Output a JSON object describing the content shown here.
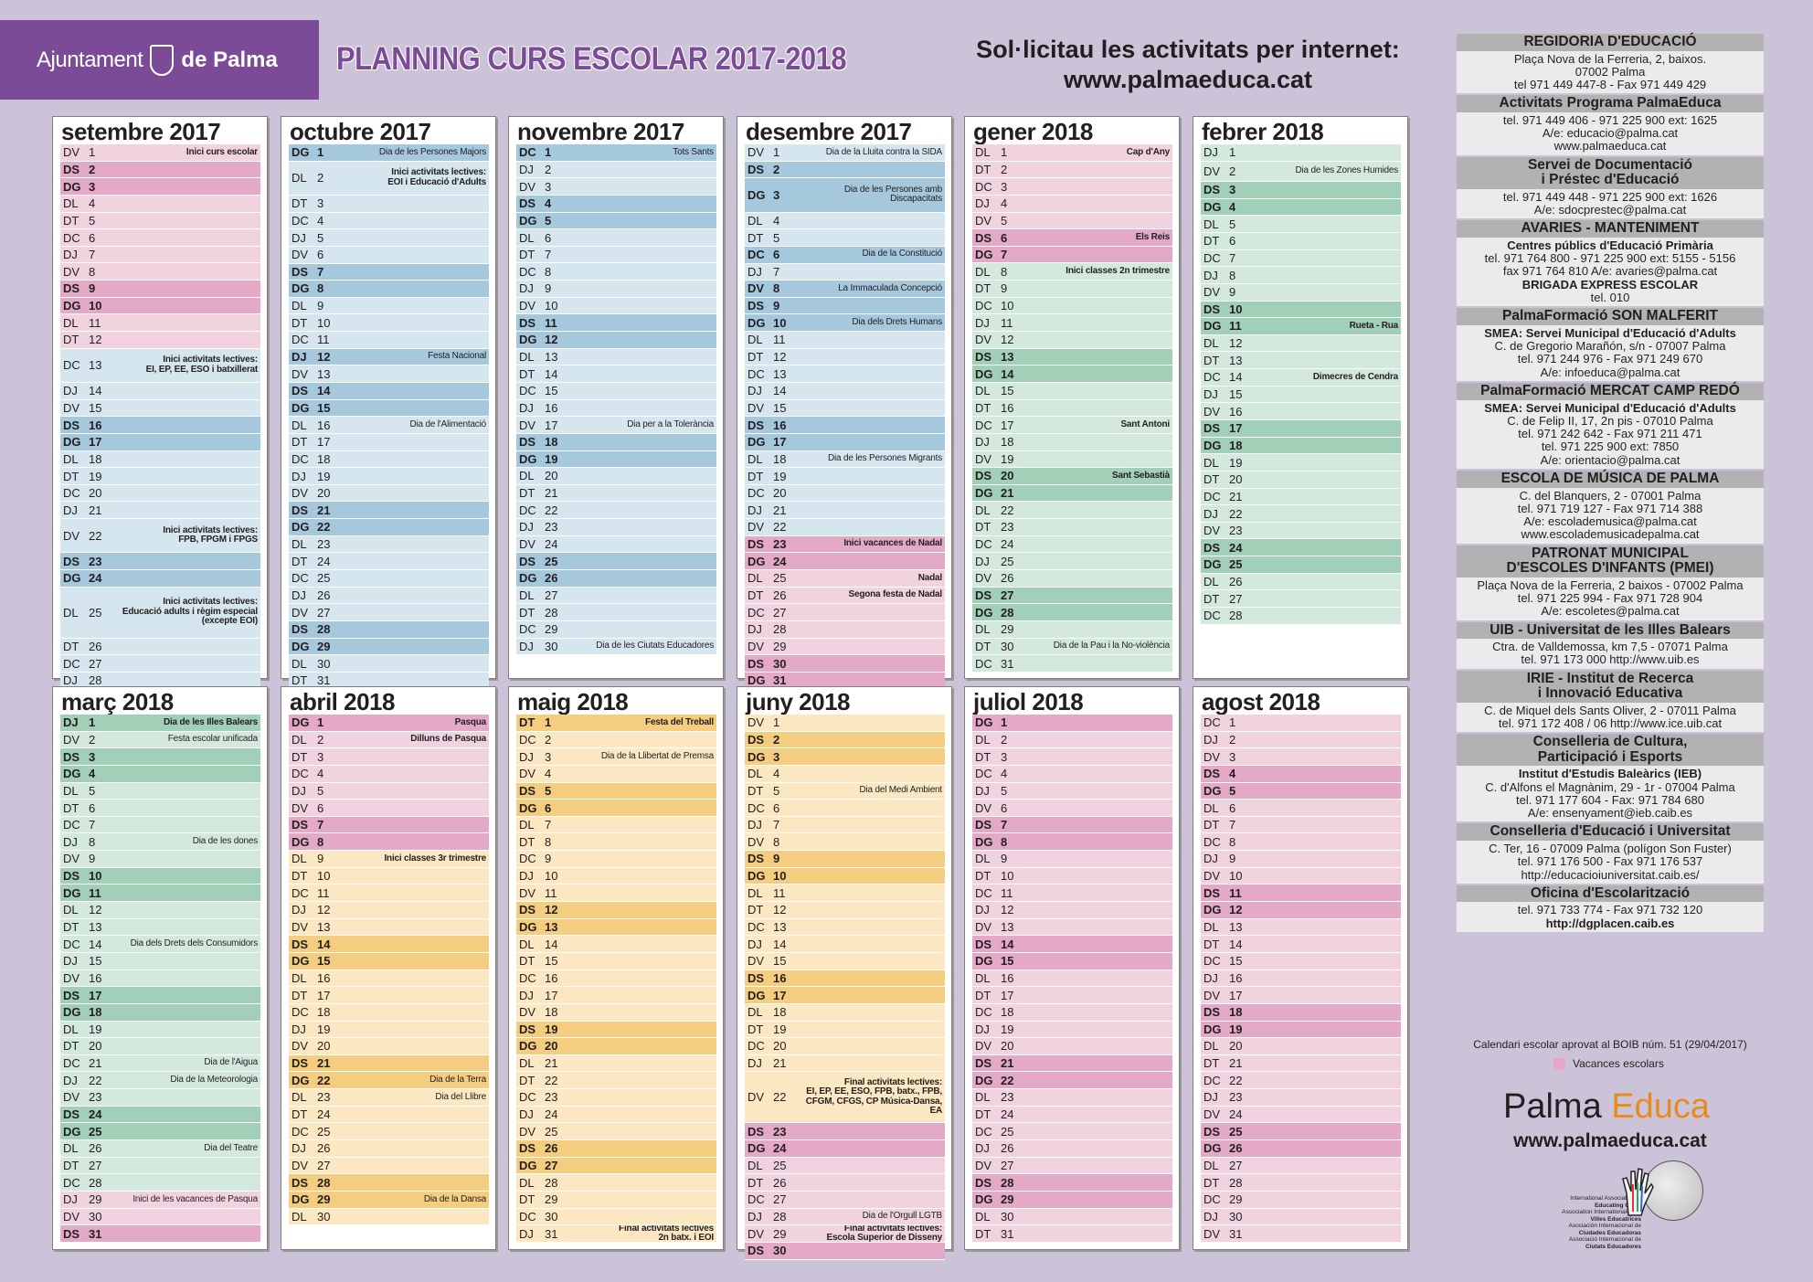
{
  "header": {
    "logo_left": "Ajuntament",
    "logo_right": "de Palma",
    "title": "PLANNING CURS ESCOLAR 2017-2018",
    "internet_line1": "Sol·licitau les activitats per internet:",
    "internet_line2": "www.palmaeduca.cat"
  },
  "colors": {
    "purple": "#7b4b97",
    "pink_light": "#f0d3df",
    "pink_dark": "#e4a9c6",
    "blue_light": "#d6e6ef",
    "blue_dark": "#a6c8dd",
    "green_light": "#d4e9de",
    "green_dark": "#a2cfb7",
    "yellow_light": "#fbe8c2",
    "yellow_dark": "#f4cd80"
  },
  "months": [
    {
      "name": "setembre 2017",
      "theme": "blue",
      "start": "DV",
      "days": 30,
      "vac": [
        1,
        2,
        3,
        4,
        5,
        6,
        7,
        8,
        9,
        10,
        11,
        12
      ],
      "events": {
        "1": "Inici curs escolar",
        "13": "Inici activitats lectives:\nEI, EP, EE, ESO i batxillerat",
        "22": "Inici activitats lectives:\nFPB, FPGM i FPGS",
        "25": "Inici activitats lectives:\nEducació adults i règim especial\n(excepte EOI)"
      },
      "bold": [
        "1",
        "13",
        "22",
        "25"
      ],
      "tall": {
        "13": 2,
        "22": 2,
        "25": 3
      }
    },
    {
      "name": "octubre 2017",
      "theme": "blue",
      "start": "DG",
      "days": 31,
      "vac": [],
      "events": {
        "1": "Dia de les Persones Majors",
        "2": "Inici activitats lectives:\nEOI i Educació d'Adults",
        "12": "Festa Nacional",
        "16": "Dia de l'Alimentació"
      },
      "bold": [
        "2"
      ],
      "tall": {
        "2": 2
      }
    },
    {
      "name": "novembre 2017",
      "theme": "blue",
      "start": "DC",
      "days": 30,
      "vac": [],
      "events": {
        "1": "Tots Sants",
        "17": "Dia per a la Tolerància",
        "30": "Dia de les Ciutats Educadores"
      },
      "bold": [],
      "tall": {}
    },
    {
      "name": "desembre 2017",
      "theme": "blue",
      "start": "DV",
      "days": 31,
      "vac": [
        23,
        24,
        25,
        26,
        27,
        28,
        29,
        30,
        31
      ],
      "events": {
        "1": "Dia de la Lluita contra la SIDA",
        "3": "Dia de les Persones amb\nDiscapacitats",
        "6": "Dia de la Constitució",
        "8": "La Immaculada Concepció",
        "10": "Dia dels Drets Humans",
        "18": "Dia de les Persones Migrants",
        "23": "Inici vacances de Nadal",
        "25": "Nadal",
        "26": "Segona festa de Nadal"
      },
      "bold": [
        "23",
        "25",
        "26"
      ],
      "tall": {
        "3": 2
      }
    },
    {
      "name": "gener 2018",
      "theme": "green",
      "start": "DL",
      "days": 31,
      "vac": [
        1,
        2,
        3,
        4,
        5,
        6,
        7
      ],
      "events": {
        "1": "Cap d'Any",
        "6": "Els Reis",
        "8": "Inici classes 2n trimestre",
        "17": "Sant Antoni",
        "20": "Sant Sebastià",
        "30": "Dia de la Pau i la No-violència"
      },
      "bold": [
        "1",
        "6",
        "8",
        "17",
        "20"
      ],
      "tall": {}
    },
    {
      "name": "febrer 2018",
      "theme": "green",
      "start": "DJ",
      "days": 28,
      "vac": [],
      "events": {
        "2": "Dia de les Zones Humides",
        "11": "Rueta - Rua",
        "14": "Dimecres de Cendra"
      },
      "bold": [
        "11",
        "14"
      ],
      "tall": {
        "2": 1.2
      }
    },
    {
      "name": "març 2018",
      "theme": "green",
      "start": "DJ",
      "days": 31,
      "vac": [
        29,
        30,
        31
      ],
      "events": {
        "1": "Dia de les Illes Balears",
        "2": "Festa escolar unificada",
        "8": "Dia de les dones",
        "14": "Dia dels Drets dels Consumidors",
        "21": "Dia de l'Aigua",
        "22": "Dia de la Meteorologia",
        "26": "Dia del Teatre",
        "29": "Inici de les vacances de Pasqua"
      },
      "bold": [
        "1"
      ],
      "tall": {}
    },
    {
      "name": "abril 2018",
      "theme": "yellow",
      "start": "DG",
      "days": 30,
      "vac": [
        1,
        2,
        3,
        4,
        5,
        6,
        7,
        8
      ],
      "events": {
        "1": "Pasqua",
        "2": "Dilluns de Pasqua",
        "9": "Inici classes 3r trimestre",
        "22": "Dia de la Terra",
        "23": "Dia del Llibre",
        "29": "Dia de la Dansa"
      },
      "bold": [
        "1",
        "2",
        "9"
      ],
      "tall": {}
    },
    {
      "name": "maig 2018",
      "theme": "yellow",
      "start": "DT",
      "days": 31,
      "vac": [],
      "events": {
        "1": "Festa del Treball",
        "3": "Dia de la Llibertat de Premsa",
        "31": "Final activitats lectives\n2n batx. i EOI"
      },
      "bold": [
        "1",
        "31"
      ],
      "tall": {}
    },
    {
      "name": "juny 2018",
      "theme": "yellow",
      "start": "DV",
      "days": 30,
      "vac": [
        23,
        24,
        25,
        26,
        27,
        28,
        29,
        30
      ],
      "events": {
        "5": "Dia del Medi Ambient",
        "22": "Final activitats lectives:\nEI, EP, EE, ESO, FPB, batx., FPB,\nCFGM, CFGS, CP Música-Dansa, EA",
        "28": "Dia de l'Orgull LGTB",
        "29": "Final activitats lectives:\nEscola Superior de Disseny"
      },
      "bold": [
        "22",
        "29"
      ],
      "tall": {
        "22": 3
      }
    },
    {
      "name": "juliol 2018",
      "theme": "pink",
      "start": "DG",
      "days": 31,
      "vac": "all",
      "events": {},
      "bold": [],
      "tall": {}
    },
    {
      "name": "agost 2018",
      "theme": "pink",
      "start": "DC",
      "days": 31,
      "vac": "all",
      "events": {},
      "bold": [],
      "tall": {}
    }
  ],
  "sidebar": [
    {
      "head": "REGIDORIA D'EDUCACIÓ",
      "lines": [
        "Plaça Nova de la Ferreria, 2, baixos.",
        "07002 Palma",
        "tel 971 449 447-8 - Fax 971 449 429"
      ]
    },
    {
      "head": "Activitats Programa PalmaEduca",
      "lines": [
        "tel. 971 449 406 - 971 225 900 ext: 1625",
        "A/e: educacio@palma.cat",
        "www.palmaeduca.cat"
      ]
    },
    {
      "head": "Servei de Documentació\ni Préstec d'Educació",
      "lines": [
        "tel. 971 449 448  - 971 225 900 ext: 1626",
        "A/e: sdocprestec@palma.cat"
      ]
    },
    {
      "head": "AVARIES - MANTENIMENT",
      "lines": [
        "**Centres públics d'Educació Primària",
        "tel. 971 764 800 - 971 225 900  ext: 5155 - 5156",
        "fax 971 764 810   A/e: avaries@palma.cat",
        "**BRIGADA EXPRESS ESCOLAR",
        "tel. 010"
      ]
    },
    {
      "head": "PalmaFormació SON MALFERIT",
      "lines": [
        "**SMEA: Servei Municipal d'Educació d'Adults",
        "C. de Gregorio Marañón, s/n  - 07007 Palma",
        "tel. 971 244 976 - Fax 971 249 670",
        "A/e: infoeduca@palma.cat"
      ]
    },
    {
      "head": "PalmaFormació MERCAT CAMP REDÓ",
      "lines": [
        "**SMEA: Servei Municipal d'Educació d'Adults",
        "C. de Felip II, 17, 2n pis - 07010 Palma",
        "tel. 971 242 642  - Fax 971 211 471",
        "tel. 971 225 900   ext: 7850",
        "A/e: orientacio@palma.cat"
      ]
    },
    {
      "head": "ESCOLA DE MÚSICA DE PALMA",
      "lines": [
        "C. del Blanquers, 2 - 07001 Palma",
        "tel. 971 719 127 - Fax 971 714 388",
        "A/e: escolademusica@palma.cat",
        "www.escolademusicadepalma.cat"
      ]
    },
    {
      "head": "PATRONAT MUNICIPAL\nD'ESCOLES D'INFANTS (PMEI)",
      "lines": [
        "Plaça Nova de la Ferreria, 2  baixos - 07002 Palma",
        "tel. 971 225 994 - Fax 971 728 904",
        "A/e: escoletes@palma.cat"
      ]
    },
    {
      "head": "UIB - Universitat de les Illes Balears",
      "lines": [
        "Ctra. de Valldemossa, km 7,5 - 07071 Palma",
        "tel. 971 173 000  http://www.uib.es"
      ]
    },
    {
      "head": "IRIE - Institut de Recerca\ni Innovació Educativa",
      "lines": [
        "C. de Miquel dels Sants Oliver, 2 - 07011 Palma",
        "tel. 971 172 408 / 06  http://www.ice.uib.cat"
      ]
    },
    {
      "head": "Conselleria de Cultura,\nParticipació i Esports",
      "lines": [
        "**Institut d'Estudis Baleàrics (IEB)",
        "C. d'Alfons el Magnànim, 29 - 1r - 07004 Palma",
        "tel. 971 177 604 - Fax: 971 784 680",
        "A/e: ensenyament@ieb.caib.es"
      ]
    },
    {
      "head": "Conselleria d'Educació i Universitat",
      "lines": [
        "C. Ter, 16 - 07009 Palma (polígon Son Fuster)",
        "tel. 971 176 500 - Fax 971 176 537",
        "http://educacioiuniversitat.caib.es/"
      ]
    },
    {
      "head": "Oficina d'Escolarització",
      "lines": [
        "tel. 971 733 774 - Fax 971 732 120",
        "**http://dgplacen.caib.es"
      ]
    }
  ],
  "footer": {
    "approved": "Calendari escolar aprovat al BOIB núm. 51 (29/04/2017)",
    "vac_label": "Vacances escolars",
    "pe_a": "Palma",
    "pe_b": "Educa",
    "pe_url": "www.palmaeduca.cat",
    "ec_text": "International Association of\nEducating Cities\nAssociation Internationale des\nVilles Educatrices\nAsociación Internacional de\nCiudades Educadoras\nAssociació Internacional de\nCiutats Educadores"
  }
}
